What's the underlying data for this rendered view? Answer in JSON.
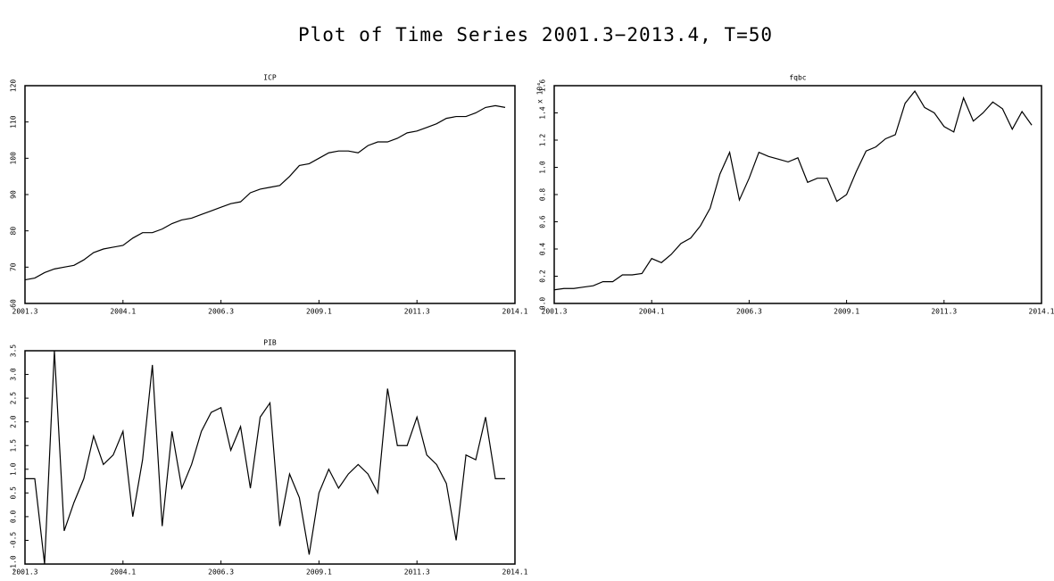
{
  "title": "Plot of Time Series 2001.3−2013.4, T=50",
  "chart_data": [
    {
      "type": "line",
      "title": "ICP",
      "color": "#000000",
      "values": [
        66.5,
        67,
        68.5,
        69.5,
        70,
        70.5,
        72,
        74,
        75,
        75.5,
        76,
        78,
        79.5,
        79.5,
        80.5,
        82,
        83,
        83.5,
        84.5,
        85.5,
        86.5,
        87.5,
        88,
        90.5,
        91.5,
        92,
        92.5,
        95,
        98,
        98.5,
        100,
        101.5,
        102,
        102,
        101.5,
        103.5,
        104.5,
        104.5,
        105.5,
        107,
        107.5,
        108.5,
        109.5,
        111,
        111.5,
        111.5,
        112.5,
        114,
        114.5,
        114
      ],
      "xlim": [
        0,
        50
      ],
      "xticks": [
        {
          "value": 0,
          "label": "2001.3"
        },
        {
          "value": 10,
          "label": "2004.1"
        },
        {
          "value": 20,
          "label": "2006.3"
        },
        {
          "value": 30,
          "label": "2009.1"
        },
        {
          "value": 40,
          "label": "2011.3"
        },
        {
          "value": 50,
          "label": "2014.1"
        }
      ],
      "ylim": [
        60,
        120
      ],
      "yticks": [
        60,
        70,
        80,
        90,
        100,
        110,
        120
      ]
    },
    {
      "type": "line",
      "title": "fqbc",
      "scale_label": "x 10⁴",
      "color": "#000000",
      "values": [
        0.1,
        0.11,
        0.11,
        0.12,
        0.13,
        0.16,
        0.16,
        0.21,
        0.21,
        0.22,
        0.33,
        0.3,
        0.36,
        0.44,
        0.48,
        0.57,
        0.7,
        0.95,
        1.11,
        0.76,
        0.92,
        1.11,
        1.08,
        1.06,
        1.04,
        1.07,
        0.89,
        0.92,
        0.92,
        0.75,
        0.8,
        0.97,
        1.12,
        1.15,
        1.21,
        1.24,
        1.47,
        1.56,
        1.44,
        1.4,
        1.3,
        1.26,
        1.51,
        1.34,
        1.4,
        1.48,
        1.43,
        1.28,
        1.41,
        1.31
      ],
      "xlim": [
        0,
        50
      ],
      "xticks": [
        {
          "value": 0,
          "label": "2001.3"
        },
        {
          "value": 10,
          "label": "2004.1"
        },
        {
          "value": 20,
          "label": "2006.3"
        },
        {
          "value": 30,
          "label": "2009.1"
        },
        {
          "value": 40,
          "label": "2011.3"
        },
        {
          "value": 50,
          "label": "2014.1"
        }
      ],
      "ylim": [
        0,
        1.6
      ],
      "yticks": [
        {
          "value": 0,
          "label": "0.0"
        },
        0.2,
        0.4,
        0.6,
        0.8,
        {
          "value": 1,
          "label": "1.0"
        },
        1.2,
        1.4,
        1.6
      ]
    },
    {
      "type": "line",
      "title": "PIB",
      "color": "#000000",
      "values": [
        0.8,
        0.8,
        -1.0,
        3.5,
        -0.3,
        0.3,
        0.8,
        1.7,
        1.1,
        1.3,
        1.8,
        0.0,
        1.2,
        3.2,
        -0.2,
        1.8,
        0.6,
        1.1,
        1.8,
        2.2,
        2.3,
        1.4,
        1.9,
        0.6,
        2.1,
        2.4,
        -0.2,
        0.9,
        0.4,
        -0.8,
        0.5,
        1.0,
        0.6,
        0.9,
        1.1,
        0.9,
        0.5,
        2.7,
        1.5,
        1.5,
        2.1,
        1.3,
        1.1,
        0.7,
        -0.5,
        1.3,
        1.2,
        2.1,
        0.8,
        0.8
      ],
      "xlim": [
        0,
        50
      ],
      "xticks": [
        {
          "value": 0,
          "label": "2001.3"
        },
        {
          "value": 10,
          "label": "2004.1"
        },
        {
          "value": 20,
          "label": "2006.3"
        },
        {
          "value": 30,
          "label": "2009.1"
        },
        {
          "value": 40,
          "label": "2011.3"
        },
        {
          "value": 50,
          "label": "2014.1"
        }
      ],
      "ylim": [
        -1,
        3.5
      ],
      "yticks": [
        {
          "value": -1,
          "label": "-1.0"
        },
        -0.5,
        {
          "value": 0,
          "label": "0.0"
        },
        0.5,
        {
          "value": 1,
          "label": "1.0"
        },
        1.5,
        {
          "value": 2,
          "label": "2.0"
        },
        2.5,
        {
          "value": 3,
          "label": "3.0"
        },
        3.5
      ]
    }
  ]
}
